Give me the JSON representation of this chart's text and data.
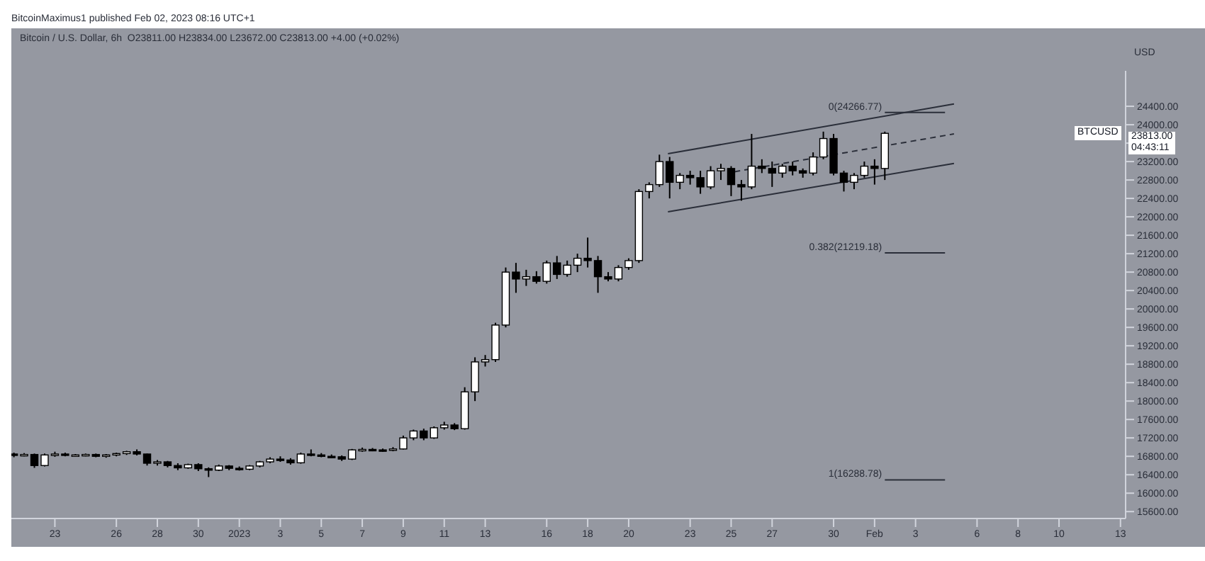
{
  "chart_data": {
    "type": "candlestick",
    "title": "Bitcoin / U.S. Dollar, 6h",
    "ylabel": "USD",
    "annotations": [
      "BitcoinMaximus1 published Feb 02, 2023 08:16 UTC+1",
      "O23811.00 H23834.00 L23672.00 C23813.00 +4.00 (+0.02%)",
      {
        "text": "BTCUSD",
        "y": 23813
      },
      "23813.00",
      "04:43:11"
    ],
    "x": [
      "2022-12-21T00:00",
      "2022-12-21T12:00",
      "2022-12-22T00:00",
      "2022-12-22T12:00",
      "2022-12-23T00:00",
      "2022-12-23T12:00",
      "2022-12-24T00:00",
      "2022-12-24T12:00",
      "2022-12-25T00:00",
      "2022-12-25T12:00",
      "2022-12-26T00:00",
      "2022-12-26T12:00",
      "2022-12-27T00:00",
      "2022-12-27T12:00",
      "2022-12-28T00:00",
      "2022-12-28T12:00",
      "2022-12-29T00:00",
      "2022-12-29T12:00",
      "2022-12-30T00:00",
      "2022-12-30T12:00",
      "2022-12-31T00:00",
      "2022-12-31T12:00",
      "2023-01-01T00:00",
      "2023-01-01T12:00",
      "2023-01-02T00:00",
      "2023-01-02T12:00",
      "2023-01-03T00:00",
      "2023-01-03T12:00",
      "2023-01-04T00:00",
      "2023-01-04T12:00",
      "2023-01-05T00:00",
      "2023-01-05T12:00",
      "2023-01-06T00:00",
      "2023-01-06T12:00",
      "2023-01-07T00:00",
      "2023-01-07T12:00",
      "2023-01-08T00:00",
      "2023-01-08T12:00",
      "2023-01-09T00:00",
      "2023-01-09T12:00",
      "2023-01-10T00:00",
      "2023-01-10T12:00",
      "2023-01-11T00:00",
      "2023-01-11T12:00",
      "2023-01-12T00:00",
      "2023-01-12T12:00",
      "2023-01-13T00:00",
      "2023-01-13T12:00",
      "2023-01-14T00:00",
      "2023-01-14T12:00",
      "2023-01-15T00:00",
      "2023-01-15T12:00",
      "2023-01-16T00:00",
      "2023-01-16T12:00",
      "2023-01-17T00:00",
      "2023-01-17T12:00",
      "2023-01-18T00:00",
      "2023-01-18T12:00",
      "2023-01-19T00:00",
      "2023-01-19T12:00",
      "2023-01-20T00:00",
      "2023-01-20T12:00",
      "2023-01-21T00:00",
      "2023-01-21T12:00",
      "2023-01-22T00:00",
      "2023-01-22T12:00",
      "2023-01-23T00:00",
      "2023-01-23T12:00",
      "2023-01-24T00:00",
      "2023-01-24T12:00",
      "2023-01-25T00:00",
      "2023-01-25T12:00",
      "2023-01-26T00:00",
      "2023-01-26T12:00",
      "2023-01-27T00:00",
      "2023-01-27T12:00",
      "2023-01-28T00:00",
      "2023-01-28T12:00",
      "2023-01-29T00:00",
      "2023-01-29T12:00",
      "2023-01-30T00:00",
      "2023-01-30T12:00",
      "2023-01-31T00:00",
      "2023-01-31T12:00",
      "2023-02-01T00:00",
      "2023-02-01T12:00"
    ],
    "ohlc": [
      [
        16850,
        16880,
        16780,
        16830
      ],
      [
        16830,
        16870,
        16800,
        16840
      ],
      [
        16840,
        16860,
        16550,
        16600
      ],
      [
        16600,
        16860,
        16580,
        16830
      ],
      [
        16830,
        16900,
        16790,
        16850
      ],
      [
        16850,
        16880,
        16800,
        16820
      ],
      [
        16820,
        16850,
        16790,
        16830
      ],
      [
        16830,
        16860,
        16800,
        16840
      ],
      [
        16840,
        16860,
        16780,
        16800
      ],
      [
        16800,
        16850,
        16770,
        16830
      ],
      [
        16830,
        16880,
        16800,
        16860
      ],
      [
        16860,
        16920,
        16830,
        16900
      ],
      [
        16900,
        16950,
        16820,
        16850
      ],
      [
        16850,
        16860,
        16600,
        16650
      ],
      [
        16650,
        16720,
        16600,
        16680
      ],
      [
        16680,
        16700,
        16560,
        16600
      ],
      [
        16600,
        16650,
        16500,
        16550
      ],
      [
        16550,
        16640,
        16530,
        16620
      ],
      [
        16620,
        16650,
        16480,
        16530
      ],
      [
        16530,
        16560,
        16350,
        16500
      ],
      [
        16500,
        16620,
        16480,
        16590
      ],
      [
        16590,
        16610,
        16500,
        16540
      ],
      [
        16540,
        16580,
        16490,
        16520
      ],
      [
        16520,
        16610,
        16500,
        16590
      ],
      [
        16590,
        16700,
        16560,
        16680
      ],
      [
        16680,
        16780,
        16650,
        16740
      ],
      [
        16740,
        16800,
        16680,
        16720
      ],
      [
        16720,
        16760,
        16620,
        16660
      ],
      [
        16660,
        16880,
        16640,
        16850
      ],
      [
        16850,
        16950,
        16800,
        16830
      ],
      [
        16830,
        16870,
        16780,
        16800
      ],
      [
        16800,
        16840,
        16760,
        16790
      ],
      [
        16790,
        16820,
        16700,
        16740
      ],
      [
        16740,
        16960,
        16720,
        16940
      ],
      [
        16940,
        16990,
        16900,
        16950
      ],
      [
        16950,
        16980,
        16910,
        16940
      ],
      [
        16940,
        16970,
        16900,
        16930
      ],
      [
        16930,
        17000,
        16910,
        16960
      ],
      [
        16960,
        17250,
        16950,
        17200
      ],
      [
        17200,
        17380,
        17150,
        17350
      ],
      [
        17350,
        17400,
        17150,
        17200
      ],
      [
        17200,
        17450,
        17180,
        17420
      ],
      [
        17420,
        17550,
        17380,
        17480
      ],
      [
        17480,
        17520,
        17370,
        17400
      ],
      [
        17400,
        18300,
        17380,
        18200
      ],
      [
        18200,
        18950,
        18000,
        18850
      ],
      [
        18850,
        19000,
        18750,
        18900
      ],
      [
        18900,
        19700,
        18850,
        19650
      ],
      [
        19650,
        20900,
        19600,
        20800
      ],
      [
        20800,
        21000,
        20350,
        20650
      ],
      [
        20650,
        20850,
        20500,
        20700
      ],
      [
        20700,
        20820,
        20550,
        20600
      ],
      [
        20600,
        21050,
        20550,
        21000
      ],
      [
        21000,
        21150,
        20650,
        20750
      ],
      [
        20750,
        21050,
        20700,
        20950
      ],
      [
        20950,
        21200,
        20800,
        21100
      ],
      [
        21100,
        21550,
        20900,
        21050
      ],
      [
        21050,
        21150,
        20350,
        20700
      ],
      [
        20700,
        20800,
        20600,
        20650
      ],
      [
        20650,
        20950,
        20600,
        20900
      ],
      [
        20900,
        21100,
        20850,
        21050
      ],
      [
        21050,
        22600,
        21000,
        22550
      ],
      [
        22550,
        22750,
        22400,
        22700
      ],
      [
        22700,
        23350,
        22650,
        23200
      ],
      [
        23200,
        23300,
        22400,
        22750
      ],
      [
        22750,
        22950,
        22600,
        22900
      ],
      [
        22900,
        23000,
        22700,
        22850
      ],
      [
        22850,
        23000,
        22500,
        22650
      ],
      [
        22650,
        23100,
        22600,
        23000
      ],
      [
        23000,
        23150,
        22800,
        23050
      ],
      [
        23050,
        23100,
        22450,
        22700
      ],
      [
        22700,
        22800,
        22350,
        22650
      ],
      [
        22650,
        23800,
        22600,
        23100
      ],
      [
        23100,
        23250,
        22950,
        23050
      ],
      [
        23050,
        23200,
        22650,
        22950
      ],
      [
        22950,
        23150,
        22850,
        23100
      ],
      [
        23100,
        23200,
        22900,
        23000
      ],
      [
        23000,
        23050,
        22850,
        22950
      ],
      [
        22950,
        23400,
        22900,
        23300
      ],
      [
        23300,
        23850,
        23250,
        23700
      ],
      [
        23700,
        23800,
        22900,
        22950
      ],
      [
        22950,
        23000,
        22550,
        22750
      ],
      [
        22750,
        22950,
        22600,
        22900
      ],
      [
        22900,
        23200,
        22850,
        23100
      ],
      [
        23100,
        23250,
        22700,
        23050
      ],
      [
        23050,
        23850,
        22800,
        23813
      ]
    ],
    "series": [
      {
        "type": "line",
        "x": [
          "2023-01-21T22:00",
          "2023-02-04T21:00"
        ],
        "values": [
          23370,
          24450
        ],
        "color": "#2a2e39",
        "line_style": "solid"
      },
      {
        "type": "line",
        "x": [
          "2023-01-25T04:00",
          "2023-02-04T21:00"
        ],
        "values": [
          22980,
          23800
        ],
        "color": "#2a2e39",
        "line_style": "dashed"
      },
      {
        "type": "line",
        "x": [
          "2023-01-21T22:00",
          "2023-02-04T21:00"
        ],
        "values": [
          22110,
          23160
        ],
        "color": "#2a2e39",
        "line_style": "solid"
      }
    ],
    "ref_lines": [
      {
        "axis": "y",
        "value": 24266.77,
        "label": "0(24266.77)",
        "color": "#2a2e39"
      },
      {
        "axis": "y",
        "value": 21219.18,
        "label": "0.382(21219.18)",
        "color": "#2a2e39"
      },
      {
        "axis": "y",
        "value": 16288.78,
        "label": "1(16288.78)",
        "color": "#2a2e39"
      }
    ],
    "xlim": [
      "2022-12-20T21:00",
      "2023-02-13T06:00"
    ],
    "xticks": [
      {
        "value": "2022-12-23",
        "label": "23"
      },
      {
        "value": "2022-12-26",
        "label": "26"
      },
      {
        "value": "2022-12-28",
        "label": "28"
      },
      {
        "value": "2022-12-30",
        "label": "30"
      },
      {
        "value": "2023-01-01",
        "label": "2023"
      },
      {
        "value": "2023-01-03",
        "label": "3"
      },
      {
        "value": "2023-01-05",
        "label": "5"
      },
      {
        "value": "2023-01-07",
        "label": "7"
      },
      {
        "value": "2023-01-09",
        "label": "9"
      },
      {
        "value": "2023-01-11",
        "label": "11"
      },
      {
        "value": "2023-01-13",
        "label": "13"
      },
      {
        "value": "2023-01-16",
        "label": "16"
      },
      {
        "value": "2023-01-18",
        "label": "18"
      },
      {
        "value": "2023-01-20",
        "label": "20"
      },
      {
        "value": "2023-01-23",
        "label": "23"
      },
      {
        "value": "2023-01-25",
        "label": "25"
      },
      {
        "value": "2023-01-27",
        "label": "27"
      },
      {
        "value": "2023-01-30",
        "label": "30"
      },
      {
        "value": "2023-02-01",
        "label": "Feb"
      },
      {
        "value": "2023-02-03",
        "label": "3"
      },
      {
        "value": "2023-02-06",
        "label": "6"
      },
      {
        "value": "2023-02-08",
        "label": "8"
      },
      {
        "value": "2023-02-10",
        "label": "10"
      },
      {
        "value": "2023-02-13",
        "label": "13"
      }
    ],
    "ylim": [
      15450,
      25170
    ],
    "yticks": [
      {
        "value": 15600,
        "label": "15600.00"
      },
      {
        "value": 16000,
        "label": "16000.00"
      },
      {
        "value": 16400,
        "label": "16400.00"
      },
      {
        "value": 16800,
        "label": "16800.00"
      },
      {
        "value": 17200,
        "label": "17200.00"
      },
      {
        "value": 17600,
        "label": "17600.00"
      },
      {
        "value": 18000,
        "label": "18000.00"
      },
      {
        "value": 18400,
        "label": "18400.00"
      },
      {
        "value": 18800,
        "label": "18800.00"
      },
      {
        "value": 19200,
        "label": "19200.00"
      },
      {
        "value": 19600,
        "label": "19600.00"
      },
      {
        "value": 20000,
        "label": "20000.00"
      },
      {
        "value": 20400,
        "label": "20400.00"
      },
      {
        "value": 20800,
        "label": "20800.00"
      },
      {
        "value": 21200,
        "label": "21200.00"
      },
      {
        "value": 21600,
        "label": "21600.00"
      },
      {
        "value": 22000,
        "label": "22000.00"
      },
      {
        "value": 22400,
        "label": "22400.00"
      },
      {
        "value": 22800,
        "label": "22800.00"
      },
      {
        "value": 23200,
        "label": "23200.00"
      },
      {
        "value": 23600,
        "label": null
      },
      {
        "value": 24000,
        "label": "24000.00"
      },
      {
        "value": 24400,
        "label": "24400.00"
      }
    ],
    "grid": false,
    "legend": false
  }
}
